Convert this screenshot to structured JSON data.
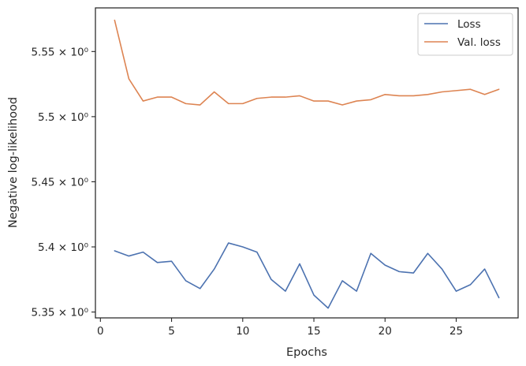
{
  "chart_data": {
    "type": "line",
    "xlabel": "Epochs",
    "ylabel": "Negative log-likelihood",
    "xlim": [
      -0.35,
      29.35
    ],
    "ylim": [
      5.3455,
      5.5835
    ],
    "x_ticks": [
      0,
      5,
      10,
      15,
      20,
      25
    ],
    "y_ticks": [
      5.35,
      5.4,
      5.45,
      5.5,
      5.55
    ],
    "y_tick_labels": [
      "5.35 × 10⁰",
      "5.4 × 10⁰",
      "5.45 × 10⁰",
      "5.5 × 10⁰",
      "5.55 × 10⁰"
    ],
    "grid": false,
    "legend_position": "top-right",
    "x": [
      1,
      2,
      3,
      4,
      5,
      6,
      7,
      8,
      9,
      10,
      11,
      12,
      13,
      14,
      15,
      16,
      17,
      18,
      19,
      20,
      21,
      22,
      23,
      24,
      25,
      26,
      27,
      28
    ],
    "series": [
      {
        "name": "Loss",
        "color": "#4c72b0",
        "values": [
          5.397,
          5.393,
          5.396,
          5.388,
          5.389,
          5.374,
          5.368,
          5.383,
          5.403,
          5.4,
          5.396,
          5.375,
          5.366,
          5.387,
          5.363,
          5.353,
          5.374,
          5.366,
          5.395,
          5.386,
          5.381,
          5.38,
          5.395,
          5.383,
          5.366,
          5.371,
          5.383,
          5.361
        ]
      },
      {
        "name": "Val. loss",
        "color": "#dd8452",
        "values": [
          5.574,
          5.529,
          5.512,
          5.515,
          5.515,
          5.51,
          5.509,
          5.519,
          5.51,
          5.51,
          5.514,
          5.515,
          5.515,
          5.516,
          5.512,
          5.512,
          5.509,
          5.512,
          5.513,
          5.517,
          5.516,
          5.516,
          5.517,
          5.519,
          5.52,
          5.521,
          5.517,
          5.521
        ]
      }
    ]
  }
}
